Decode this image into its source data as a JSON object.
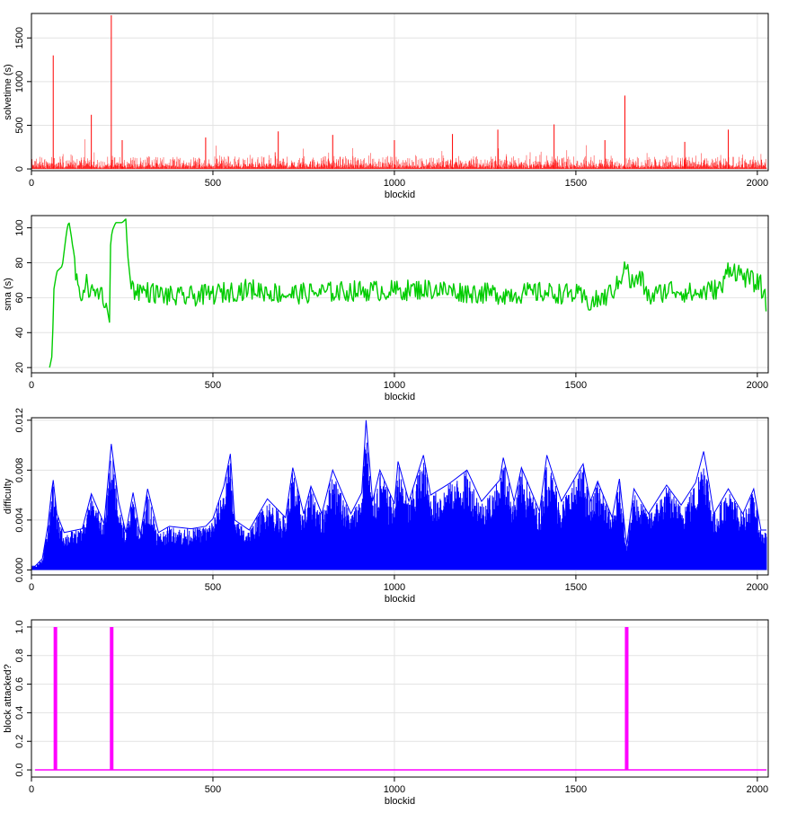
{
  "chart_data": [
    {
      "type": "area",
      "xlabel": "blockid",
      "ylabel": "solvetime (s)",
      "xlim": [
        0,
        2030
      ],
      "ylim": [
        -20,
        1780
      ],
      "xticks": [
        0,
        500,
        1000,
        1500,
        2000
      ],
      "yticks": [
        0,
        500,
        1000,
        1500
      ],
      "grid": true,
      "color": "#ff0000",
      "series": [
        {
          "x": [
            0,
            60,
            165,
            220,
            250,
            480,
            680,
            830,
            1000,
            1160,
            1285,
            1440,
            1580,
            1635,
            1800,
            1920,
            2030
          ],
          "values": [
            120,
            1300,
            620,
            1760,
            330,
            360,
            430,
            390,
            330,
            400,
            450,
            510,
            330,
            840,
            310,
            450,
            220
          ]
        }
      ]
    },
    {
      "type": "line",
      "xlabel": "blockid",
      "ylabel": "sma (s)",
      "xlim": [
        0,
        2030
      ],
      "ylim": [
        17,
        107
      ],
      "xticks": [
        0,
        500,
        1000,
        1500,
        2000
      ],
      "yticks": [
        20,
        40,
        60,
        80,
        100
      ],
      "grid": true,
      "color": "#00cc00",
      "series": [
        {
          "x": [
            50,
            57,
            62,
            70,
            85,
            97,
            103,
            110,
            130,
            150,
            170,
            190,
            205,
            215,
            218,
            222,
            232,
            250,
            260,
            265,
            275,
            330,
            400,
            500,
            600,
            700,
            800,
            900,
            1000,
            1100,
            1200,
            1300,
            1400,
            1500,
            1540,
            1580,
            1620,
            1635,
            1650,
            1680,
            1700,
            1760,
            1830,
            1905,
            1920,
            1980,
            2010,
            2025
          ],
          "values": [
            20,
            27,
            65,
            75,
            78,
            98,
            104,
            95,
            60,
            68,
            62,
            64,
            58,
            46,
            90,
            98,
            103,
            103,
            105,
            85,
            65,
            63,
            60,
            62,
            65,
            62,
            63,
            64,
            64,
            65,
            63,
            62,
            63,
            62,
            57,
            60,
            68,
            82,
            68,
            71,
            60,
            65,
            62,
            66,
            78,
            70,
            67,
            56
          ]
        }
      ]
    },
    {
      "type": "area",
      "xlabel": "blockid",
      "ylabel": "difficulty",
      "xlim": [
        0,
        2030
      ],
      "ylim": [
        -0.0004,
        0.0122
      ],
      "xticks": [
        0,
        500,
        1000,
        1500,
        2000
      ],
      "yticks": [
        0.0,
        0.004,
        0.008,
        0.012
      ],
      "yticklabels": [
        "0.000",
        "0.004",
        "0.008",
        "0.012"
      ],
      "grid": true,
      "color": "#0000ff",
      "series": [
        {
          "x": [
            0,
            10,
            30,
            45,
            55,
            60,
            70,
            90,
            140,
            165,
            200,
            220,
            240,
            260,
            280,
            300,
            320,
            350,
            380,
            440,
            480,
            500,
            530,
            548,
            560,
            600,
            650,
            700,
            720,
            750,
            770,
            800,
            830,
            880,
            910,
            922,
            940,
            960,
            1000,
            1010,
            1040,
            1080,
            1100,
            1150,
            1200,
            1240,
            1290,
            1300,
            1330,
            1350,
            1400,
            1420,
            1460,
            1520,
            1540,
            1560,
            1600,
            1620,
            1640,
            1660,
            1700,
            1750,
            1790,
            1830,
            1852,
            1860,
            1880,
            1920,
            1960,
            1990,
            2010,
            2025
          ],
          "values": [
            0.0003,
            0.0003,
            0.0009,
            0.0035,
            0.0062,
            0.0072,
            0.0045,
            0.003,
            0.0033,
            0.0061,
            0.0037,
            0.0101,
            0.0055,
            0.003,
            0.0062,
            0.0028,
            0.0065,
            0.003,
            0.0035,
            0.0033,
            0.0035,
            0.0041,
            0.0067,
            0.0093,
            0.004,
            0.0032,
            0.0057,
            0.0042,
            0.0082,
            0.0045,
            0.0067,
            0.0045,
            0.008,
            0.0045,
            0.0062,
            0.012,
            0.0055,
            0.008,
            0.0053,
            0.0087,
            0.0055,
            0.0092,
            0.006,
            0.0069,
            0.008,
            0.0055,
            0.0072,
            0.009,
            0.0055,
            0.0082,
            0.0047,
            0.0092,
            0.0055,
            0.0085,
            0.0055,
            0.0071,
            0.0042,
            0.0073,
            0.002,
            0.0065,
            0.0045,
            0.0068,
            0.0052,
            0.007,
            0.0095,
            0.0082,
            0.0045,
            0.0065,
            0.0045,
            0.0065,
            0.0032,
            0.0032
          ]
        }
      ]
    },
    {
      "type": "line",
      "xlabel": "blockid",
      "ylabel": "block attacked?",
      "xlim": [
        0,
        2030
      ],
      "ylim": [
        -0.05,
        1.05
      ],
      "xticks": [
        0,
        500,
        1000,
        1500,
        2000
      ],
      "yticks": [
        0.0,
        0.2,
        0.4,
        0.6,
        0.8,
        1.0
      ],
      "yticklabels": [
        "0.0",
        "0.2",
        "0.4",
        "0.6",
        "0.8",
        "1.0"
      ],
      "grid": true,
      "color": "#ff00ff",
      "baseline": 0,
      "attacked_blocks": [
        66,
        221,
        1640
      ]
    }
  ]
}
